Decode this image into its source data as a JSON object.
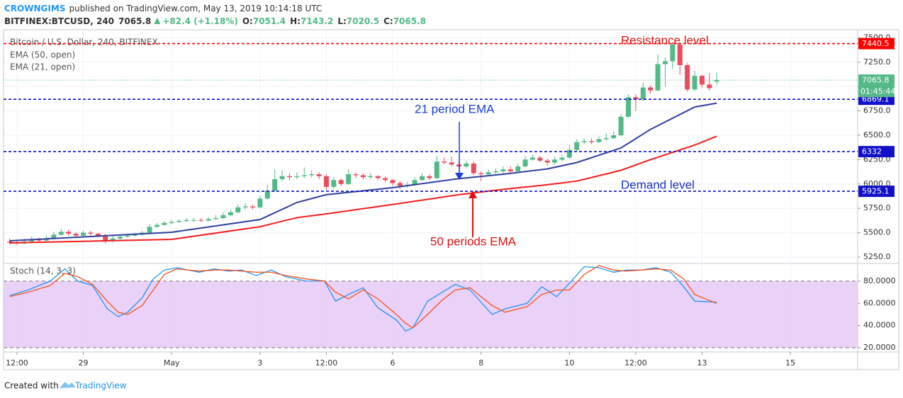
{
  "header": {
    "user": "CROWNGIMS",
    "published": "published on TradingView.com, May 13, 2019 10:14:18 UTC",
    "symbol": "BITFINEX:BTCUSD, 240",
    "change": "+82.4 (+1.18%)",
    "o_label": "O:",
    "h_label": "H:",
    "l_label": "L:",
    "c_label": "C:"
  },
  "footer": {
    "created": "Created with",
    "brand": "TradingView"
  },
  "chart_data": [
    {
      "type": "candlestick",
      "title": "Bitcoin / U.S. Dollar, 240, BITFINEX",
      "up_color": "#53b987",
      "down_color": "#eb4d5c",
      "grid": true,
      "xlim": [
        4.7,
        468.5
      ],
      "xticks": [
        {
          "value": 12,
          "label": "12:00"
        },
        {
          "value": 48,
          "label": "29"
        },
        {
          "value": 96,
          "label": "May"
        },
        {
          "value": 144,
          "label": "3"
        },
        {
          "value": 180,
          "label": "12:00"
        },
        {
          "value": 216,
          "label": "6"
        },
        {
          "value": 264,
          "label": "8"
        },
        {
          "value": 312,
          "label": "10"
        },
        {
          "value": 348,
          "label": "12:00"
        },
        {
          "value": 384,
          "label": "13"
        },
        {
          "value": 432,
          "label": "15"
        }
      ],
      "ylim": [
        5184.6,
        7582.7
      ],
      "yticks": [
        {
          "value": 5250,
          "label": "5250.0"
        },
        {
          "value": 5500,
          "label": "5500.0"
        },
        {
          "value": 5750,
          "label": "5750.0"
        },
        {
          "value": 6000,
          "label": "6000.0"
        },
        {
          "value": 6250,
          "label": "6250.0"
        },
        {
          "value": 6500,
          "label": "6500.0"
        },
        {
          "value": 6750,
          "label": "6750.0"
        },
        {
          "value": 7000,
          "label": "7000.0"
        },
        {
          "value": 7250,
          "label": "7250.0"
        },
        {
          "value": 7500,
          "label": "7500.0"
        }
      ],
      "x": [
        8,
        12,
        16,
        20,
        24,
        28,
        32,
        36,
        40,
        44,
        48,
        52,
        56,
        60,
        64,
        68,
        72,
        76,
        80,
        84,
        88,
        92,
        96,
        100,
        104,
        108,
        112,
        116,
        120,
        124,
        128,
        132,
        136,
        140,
        144,
        148,
        152,
        156,
        160,
        164,
        168,
        172,
        176,
        180,
        184,
        188,
        192,
        196,
        200,
        204,
        208,
        212,
        216,
        220,
        224,
        228,
        232,
        236,
        240,
        244,
        248,
        252,
        256,
        260,
        264,
        268,
        272,
        276,
        280,
        284,
        288,
        292,
        296,
        300,
        304,
        308,
        312,
        316,
        320,
        324,
        328,
        332,
        336,
        340,
        344,
        348,
        352,
        356,
        360,
        364,
        368,
        372,
        376,
        380,
        384,
        388,
        392
      ],
      "open": [
        5410,
        5400,
        5390,
        5410,
        5430,
        5420,
        5440,
        5480,
        5510,
        5490,
        5470,
        5500,
        5490,
        5470,
        5420,
        5440,
        5460,
        5470,
        5480,
        5500,
        5560,
        5580,
        5600,
        5610,
        5620,
        5630,
        5630,
        5625,
        5640,
        5650,
        5680,
        5710,
        5760,
        5770,
        5760,
        5850,
        5930,
        6050,
        6080,
        6070,
        6080,
        6090,
        6100,
        6080,
        5970,
        6040,
        6000,
        6100,
        6090,
        6070,
        6080,
        6060,
        6040,
        6010,
        5980,
        5990,
        6040,
        6080,
        6060,
        6230,
        6220,
        6200,
        6180,
        6210,
        6110,
        6100,
        6120,
        6130,
        6150,
        6130,
        6180,
        6250,
        6270,
        6240,
        6220,
        6250,
        6270,
        6350,
        6430,
        6440,
        6430,
        6460,
        6470,
        6500,
        6690,
        6890,
        6870,
        6990,
        6960,
        7230,
        7260,
        7430,
        7220,
        6970,
        7110,
        7020,
        7051.4
      ],
      "high": [
        5440,
        5420,
        5440,
        5460,
        5450,
        5470,
        5510,
        5540,
        5530,
        5510,
        5520,
        5520,
        5500,
        5490,
        5470,
        5480,
        5490,
        5500,
        5520,
        5590,
        5600,
        5620,
        5630,
        5640,
        5650,
        5650,
        5650,
        5660,
        5680,
        5710,
        5740,
        5790,
        5800,
        5790,
        5880,
        5990,
        6150,
        6140,
        6110,
        6120,
        6170,
        6140,
        6120,
        6100,
        6070,
        6060,
        6150,
        6120,
        6110,
        6110,
        6090,
        6080,
        6050,
        6030,
        6020,
        6070,
        6110,
        6100,
        6290,
        6270,
        6280,
        6230,
        6240,
        6230,
        6130,
        6150,
        6160,
        6180,
        6180,
        6210,
        6290,
        6300,
        6290,
        6260,
        6280,
        6300,
        6400,
        6460,
        6470,
        6470,
        6490,
        6520,
        6540,
        6720,
        6920,
        6920,
        7040,
        7010,
        7330,
        7300,
        7450,
        7440,
        7240,
        7160,
        7120,
        7140,
        7143.2
      ],
      "low": [
        5380,
        5370,
        5380,
        5400,
        5400,
        5410,
        5430,
        5470,
        5470,
        5450,
        5460,
        5470,
        5450,
        5390,
        5400,
        5430,
        5450,
        5460,
        5470,
        5490,
        5550,
        5570,
        5590,
        5600,
        5610,
        5610,
        5610,
        5615,
        5630,
        5640,
        5670,
        5700,
        5740,
        5740,
        5750,
        5840,
        5920,
        6030,
        6040,
        6050,
        6060,
        6070,
        6050,
        5940,
        5950,
        5980,
        5990,
        6060,
        6050,
        6050,
        6040,
        6020,
        5980,
        5950,
        5960,
        5980,
        6030,
        6040,
        6050,
        6200,
        6180,
        6150,
        6160,
        6090,
        6030,
        6080,
        6100,
        6110,
        6110,
        6120,
        6170,
        6240,
        6220,
        6190,
        6200,
        6230,
        6260,
        6330,
        6410,
        6410,
        6420,
        6440,
        6460,
        6490,
        6680,
        6750,
        6850,
        6930,
        6950,
        7000,
        7180,
        7120,
        6950,
        6950,
        6990,
        6960,
        7020.5
      ],
      "close": [
        5400,
        5390,
        5410,
        5430,
        5420,
        5440,
        5480,
        5510,
        5490,
        5470,
        5500,
        5490,
        5470,
        5420,
        5440,
        5460,
        5470,
        5480,
        5500,
        5560,
        5580,
        5600,
        5610,
        5620,
        5630,
        5630,
        5625,
        5640,
        5650,
        5680,
        5710,
        5760,
        5770,
        5760,
        5850,
        5930,
        6050,
        6080,
        6070,
        6080,
        6090,
        6100,
        6080,
        5970,
        6040,
        6000,
        6100,
        6090,
        6070,
        6080,
        6060,
        6040,
        6010,
        5980,
        5990,
        6040,
        6080,
        6060,
        6230,
        6220,
        6200,
        6180,
        6210,
        6110,
        6100,
        6120,
        6130,
        6150,
        6130,
        6180,
        6250,
        6270,
        6240,
        6220,
        6250,
        6270,
        6350,
        6430,
        6440,
        6430,
        6460,
        6470,
        6500,
        6690,
        6890,
        6870,
        6990,
        6960,
        7230,
        7260,
        7430,
        7220,
        6970,
        7110,
        7020,
        6983.4,
        7065.8
      ],
      "countdown": "01:45:44",
      "lines": [
        {
          "name": "EMA (50, open)",
          "color": "#f21c1c",
          "x": [
            8,
            96,
            144,
            164,
            180,
            216,
            252,
            276,
            300,
            316,
            340,
            356,
            380,
            392
          ],
          "values": [
            5395,
            5432,
            5562,
            5655,
            5693,
            5790,
            5890,
            5945,
            5992,
            6030,
            6140,
            6250,
            6400,
            6490
          ]
        },
        {
          "name": "EMA (21, open)",
          "color": "#2f3f9f",
          "x": [
            8,
            96,
            144,
            164,
            180,
            216,
            252,
            276,
            300,
            316,
            340,
            356,
            380,
            392
          ],
          "values": [
            5417,
            5504,
            5635,
            5810,
            5890,
            5962,
            6055,
            6100,
            6155,
            6220,
            6370,
            6560,
            6790,
            6830
          ]
        }
      ],
      "levels": [
        {
          "value": 7440.5,
          "color": "#ff0000"
        },
        {
          "value": 6869.1,
          "color": "#1010c8"
        },
        {
          "value": 6332.0,
          "color": "#1010c8"
        },
        {
          "value": 5925.1,
          "color": "#1010c8"
        }
      ],
      "annotations": [
        {
          "text": "Resistance level",
          "color": "#e01010"
        },
        {
          "text": "21 period EMA",
          "color": "#1a3ed6"
        },
        {
          "text": "Demand level",
          "color": "#1a2fbf"
        },
        {
          "text": "50 periods EMA",
          "color": "#e01010"
        }
      ]
    },
    {
      "type": "line",
      "title": "Stoch (14, 3, 3)",
      "xlim": [
        4.7,
        468.5
      ],
      "ylim": [
        16.2,
        95.9
      ],
      "yticks": [
        {
          "value": 20,
          "label": "20.0000"
        },
        {
          "value": 40,
          "label": "40.0000"
        },
        {
          "value": 60,
          "label": "60.0000"
        },
        {
          "value": 80,
          "label": "80.0000"
        }
      ],
      "band": [
        20,
        80
      ],
      "band_color": "#e6c9f7",
      "x": [
        8,
        18,
        30,
        38,
        45,
        53,
        61,
        67,
        72,
        80,
        86,
        92,
        99,
        111,
        119,
        127,
        134,
        142,
        150,
        158,
        169,
        179,
        185,
        192,
        200,
        208,
        218,
        223,
        227,
        235,
        243,
        250,
        258,
        270,
        277,
        289,
        297,
        305,
        312,
        320,
        328,
        336,
        343,
        351,
        359,
        367,
        374,
        380,
        392
      ],
      "series": [
        {
          "color": "#2196f3",
          "values": [
            67,
            72,
            80,
            91,
            80,
            76,
            55,
            48,
            52,
            65,
            82,
            90,
            92,
            88,
            91,
            89,
            90,
            85,
            90,
            84,
            80,
            80,
            62,
            68,
            74,
            56,
            45,
            35,
            38,
            62,
            70,
            77,
            72,
            50,
            55,
            60,
            75,
            66,
            78,
            93,
            92,
            88,
            90,
            90,
            92,
            88,
            75,
            62,
            61
          ]
        },
        {
          "color": "#f4511e",
          "values": [
            66,
            70,
            76,
            87,
            84,
            77,
            62,
            52,
            50,
            58,
            72,
            86,
            91,
            89,
            90,
            90,
            89,
            88,
            88,
            85,
            82,
            80,
            70,
            64,
            72,
            64,
            50,
            42,
            38,
            50,
            63,
            72,
            74,
            58,
            52,
            57,
            68,
            72,
            72,
            86,
            94,
            90,
            89,
            90,
            91,
            90,
            82,
            68,
            60
          ]
        }
      ]
    }
  ]
}
